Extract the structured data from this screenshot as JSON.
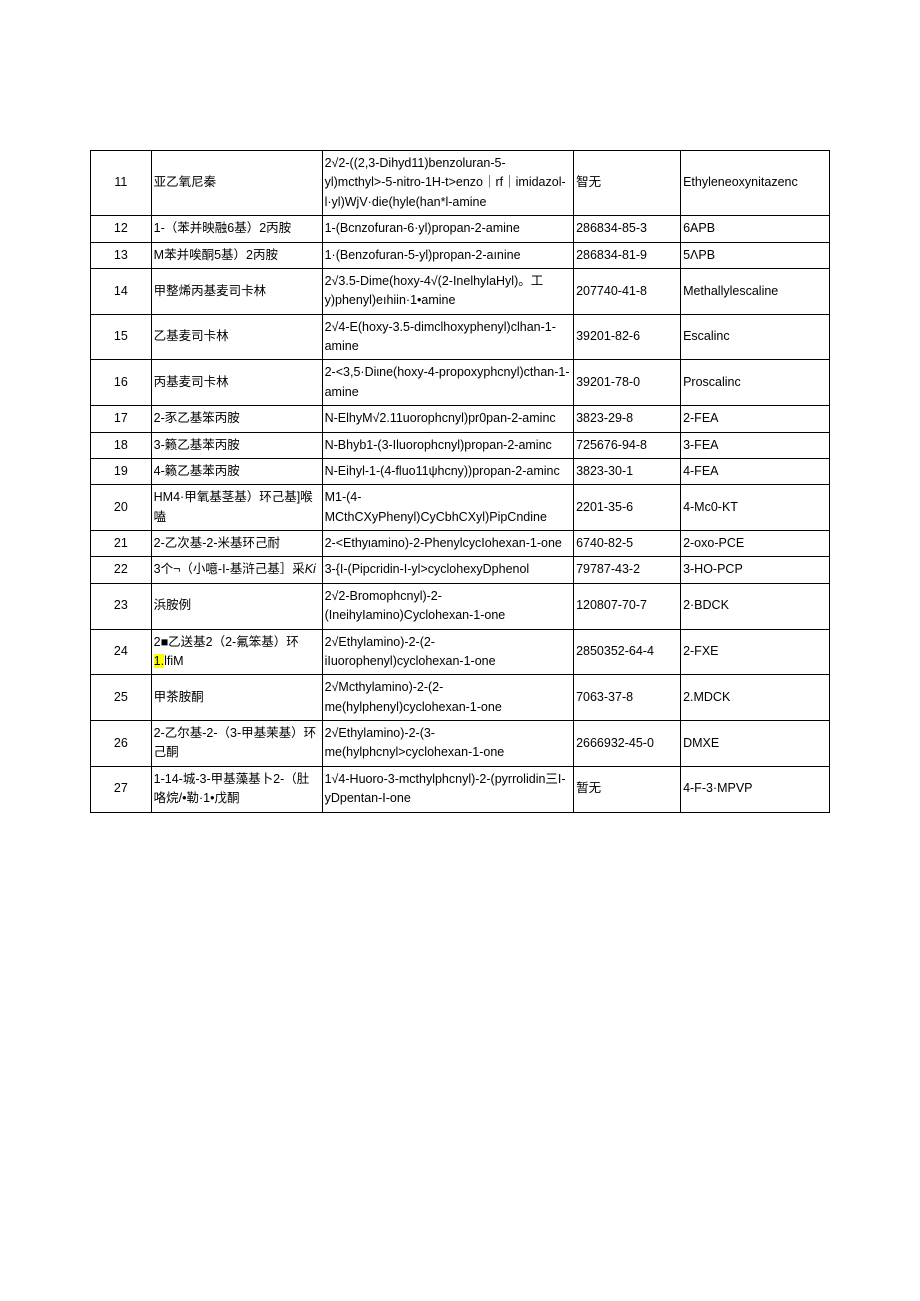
{
  "table": {
    "columns": [
      {
        "key": "num",
        "class": "col-num"
      },
      {
        "key": "name",
        "class": "col-name"
      },
      {
        "key": "chem",
        "class": "col-chem"
      },
      {
        "key": "cas",
        "class": "col-cas"
      },
      {
        "key": "abbr",
        "class": "col-abbr"
      }
    ],
    "rows": [
      {
        "num": "11",
        "name": "亚乙氧尼秦",
        "chem": "2√2-((2,3-Dihyd11)benzoluran-5-yl)mcthyl>-5-nitro-1H-t>enzo｜rf｜imidazol-l·yl)WjV·die(hyle(han*l-amine",
        "cas": "智无",
        "abbr": "Ethyleneoxynitazenc"
      },
      {
        "num": "12",
        "name": "1-（苯并映融6基）2丙胺",
        "chem": "1-(Bcnzofuran-6·yl)propan-2-amine",
        "cas": "286834-85-3",
        "abbr": "6APB"
      },
      {
        "num": "13",
        "name": "M苯并唉酮5基）2丙胺",
        "chem": "1·(Benzofuran-5-yl)propan-2-aınine",
        "cas": "286834-81-9",
        "abbr": "5ΛPB"
      },
      {
        "num": "14",
        "name": "甲整烯丙基麦司卡林",
        "chem": "2√3.5-Dime(hoxy-4√(2-InelhylaHyl)。工y)phenyl)eıhiin·1•amine",
        "cas": "207740-41-8",
        "abbr": "Methallylescaline"
      },
      {
        "num": "15",
        "name": "乙基麦司卡林",
        "chem": "2√4-E(hoxy-3.5-dimclhoxyphenyl)clhan-1-amine",
        "cas": "39201-82-6",
        "abbr": "Escalinc"
      },
      {
        "num": "16",
        "name": "丙基麦司卡林",
        "chem": "2-<3,5·Diιne(hoxy-4-propoxyphcnyl)cthan-1-amine",
        "cas": "39201-78-0",
        "abbr": "Proscalinc"
      },
      {
        "num": "17",
        "name": "2-豕乙基笨丙胺",
        "chem": "N-ElhyM√2.11uorophcnyl)pr0pan-2-aminc",
        "cas": "3823-29-8",
        "abbr": "2-FEA"
      },
      {
        "num": "18",
        "name": "3-籁乙基苯丙胺",
        "chem": "N-Bhyb1-(3-Iluorophcnyl)propan-2-aminc",
        "cas": "725676-94-8",
        "abbr": "3-FEA"
      },
      {
        "num": "19",
        "name": "4-籁乙基苯丙胺",
        "chem": "N-Eihyl-1-(4-fluo11ψhcny))propan-2-aminc",
        "cas": "3823-30-1",
        "abbr": "4-FEA"
      },
      {
        "num": "20",
        "name": "HM4·甲氧基茎基）环己基]喉嗑",
        "chem": "M1-(4-MCthCXyPhenyl)CyCbhCXyl)PipCndine",
        "cas": "2201-35-6",
        "abbr": "4-Mc0-KT"
      },
      {
        "num": "21",
        "name": "2-乙次基-2-米基环己耐",
        "chem": "2-<Ethyιamino)-2-PhenylcycIohexan-1-one",
        "cas": "6740-82-5",
        "abbr": "2-oxo-PCE"
      },
      {
        "num": "22",
        "name_html": "3个¬（小噫-I-基浒己基］采<span class=\"italic\">Ki</span>",
        "chem": "3-{I-(Pipcridin-I-yl>cyclohexyDphenol",
        "cas": "79787-43-2",
        "abbr": "3-HO-PCP"
      },
      {
        "num": "23",
        "name": "浜胺例",
        "chem": "2√2-Bromophcnyl)-2-(IneihyIamino)Cyclohexan-1-one",
        "cas": "120807-70-7",
        "abbr": "2·BDCK"
      },
      {
        "num": "24",
        "name_html": "2■乙送基2（2-氟笨基）环<span class=\"hl\">1.</span>lfiM",
        "chem": "2√Ethylamino)-2-(2-iIuorophenyl)cyclohexan-1-one",
        "cas": "2850352-64-4",
        "abbr": "2-FXE"
      },
      {
        "num": "25",
        "name": "甲茶胺酮",
        "chem": "2√Mcthylamino)-2-(2-me(hylphenyl)cyclohexan-1-one",
        "cas": "7063-37-8",
        "abbr": "2.MDCK"
      },
      {
        "num": "26",
        "name": "2-乙尔基-2-（3-甲基茉基）环己酮",
        "chem": "2√Ethylamino)-2-(3-me(hylphcnyl>cyclohexan-1-one",
        "cas": "2666932-45-0",
        "abbr": "DMXE"
      },
      {
        "num": "27",
        "name": "1-14-城-3-甲基藻基卜2-（肚咯烷/•勒·1•戊酮",
        "chem": "1√4-Huoro-3-mcthylphcnyl)-2-(pyrrolidin三I-yDpentan-I-one",
        "cas": "暂无",
        "abbr": "4-F-3·MPVP"
      }
    ],
    "font_size": 12.5,
    "border_color": "#000000",
    "background": "#ffffff",
    "highlight_color": "#ffff00"
  }
}
